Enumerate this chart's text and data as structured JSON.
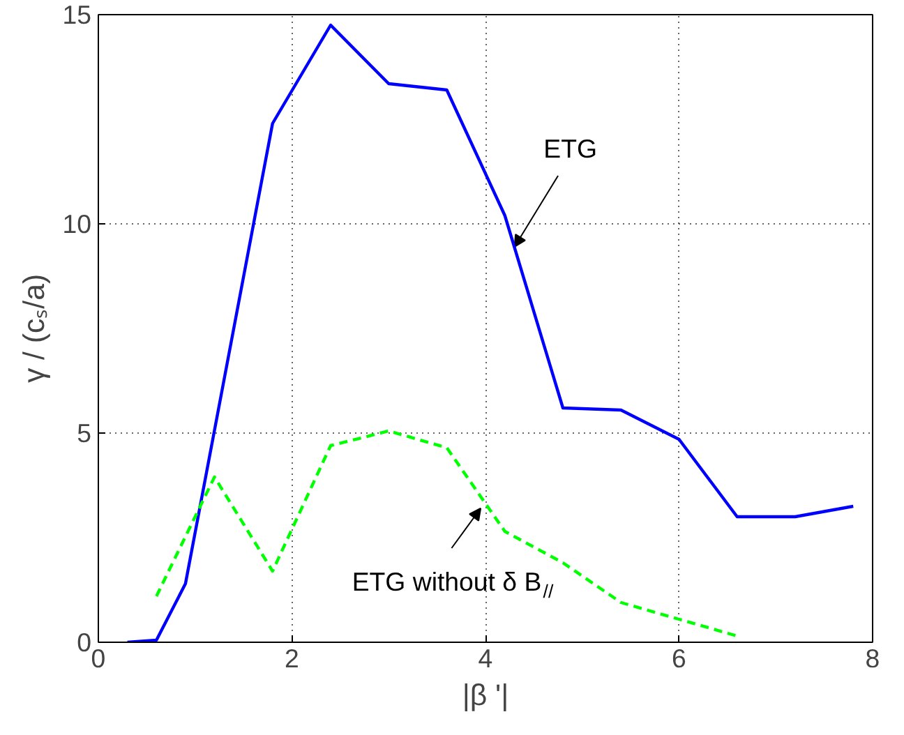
{
  "chart_data": {
    "type": "line",
    "xlabel": "|β '|",
    "ylabel": "γ / (cₛ/a)",
    "xlim": [
      0,
      8
    ],
    "ylim": [
      0,
      15
    ],
    "xticks": [
      0,
      2,
      4,
      6,
      8
    ],
    "yticks": [
      0,
      5,
      10,
      15
    ],
    "grid": true,
    "series": [
      {
        "color": "#0000ff",
        "line_style": "solid",
        "x": [
          0.3,
          0.6,
          0.9,
          1.8,
          2.4,
          3.0,
          3.6,
          4.2,
          4.8,
          5.4,
          6.0,
          6.6,
          7.2,
          7.8
        ],
        "values": [
          0,
          0.05,
          1.4,
          12.4,
          14.75,
          13.35,
          13.2,
          10.2,
          5.6,
          5.55,
          4.85,
          3.0,
          3.0,
          3.25
        ]
      },
      {
        "color": "#00ff00",
        "line_style": "dashed",
        "x": [
          0.6,
          1.2,
          1.8,
          2.4,
          3.0,
          3.6,
          4.2,
          4.8,
          5.4,
          6.0,
          6.6
        ],
        "values": [
          1.1,
          3.95,
          1.7,
          4.7,
          5.05,
          4.65,
          2.65,
          1.9,
          0.95,
          0.55,
          0.15
        ]
      }
    ],
    "annotations": [
      {
        "text": "ETG",
        "x": 4.3,
        "y": 9.45
      },
      {
        "text": "ETG without δ B$_{//}$",
        "x": 3.95,
        "y": 3.2
      }
    ]
  }
}
